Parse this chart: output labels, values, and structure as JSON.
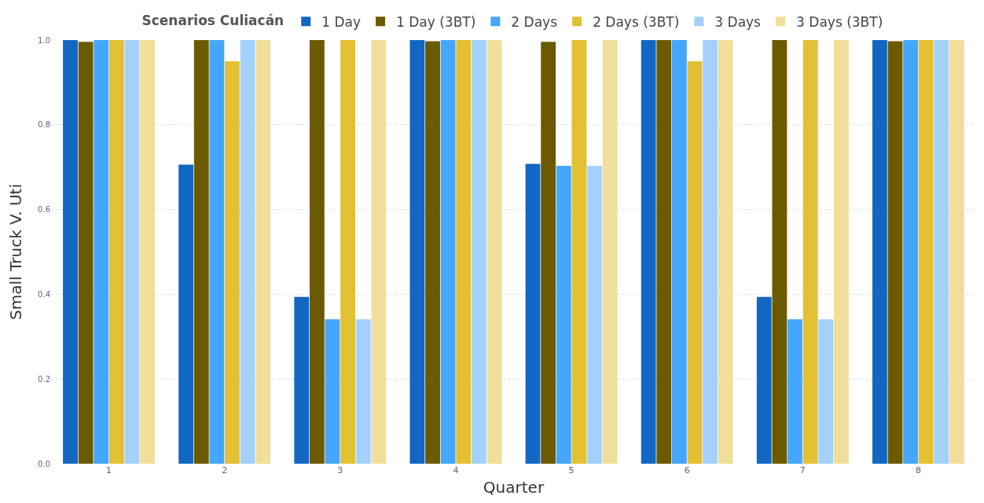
{
  "chart_data": {
    "type": "bar",
    "legend_title": "Scenarios Culiacán",
    "xlabel": "Quarter",
    "ylabel": "Small Truck V. Uti",
    "categories": [
      "1",
      "2",
      "3",
      "4",
      "5",
      "6",
      "7",
      "8"
    ],
    "series": [
      {
        "name": "1 Day",
        "color": "#1167c1",
        "values": [
          1.0,
          0.706,
          0.394,
          1.0,
          0.708,
          1.0,
          0.394,
          1.0
        ]
      },
      {
        "name": "1 Day (3BT)",
        "color": "#6b5a00",
        "values": [
          0.996,
          1.0,
          1.0,
          0.997,
          0.996,
          1.0,
          1.0,
          0.997
        ]
      },
      {
        "name": "2 Days",
        "color": "#44a6ff",
        "values": [
          1.0,
          1.0,
          0.341,
          1.0,
          0.703,
          1.0,
          0.341,
          1.0
        ]
      },
      {
        "name": "2 Days (3BT)",
        "color": "#e2c032",
        "values": [
          1.0,
          0.95,
          1.0,
          1.0,
          1.0,
          0.95,
          1.0,
          1.0
        ]
      },
      {
        "name": "3 Days",
        "color": "#a3d1fc",
        "values": [
          1.0,
          1.0,
          0.341,
          1.0,
          0.703,
          1.0,
          0.341,
          1.0
        ]
      },
      {
        "name": "3 Days (3BT)",
        "color": "#f0df9a",
        "values": [
          1.0,
          1.0,
          1.0,
          1.0,
          1.0,
          1.0,
          1.0,
          1.0
        ]
      }
    ],
    "ylim": [
      0,
      1
    ],
    "yticks": [
      {
        "value": 0,
        "label": "0.0"
      },
      {
        "value": 0.2,
        "label": "0.2"
      },
      {
        "value": 0.4,
        "label": "0.4"
      },
      {
        "value": 0.6,
        "label": "0.6"
      },
      {
        "value": 0.8,
        "label": "0.8"
      },
      {
        "value": 1,
        "label": "1.0"
      }
    ],
    "grid": "y",
    "legend": "top"
  }
}
